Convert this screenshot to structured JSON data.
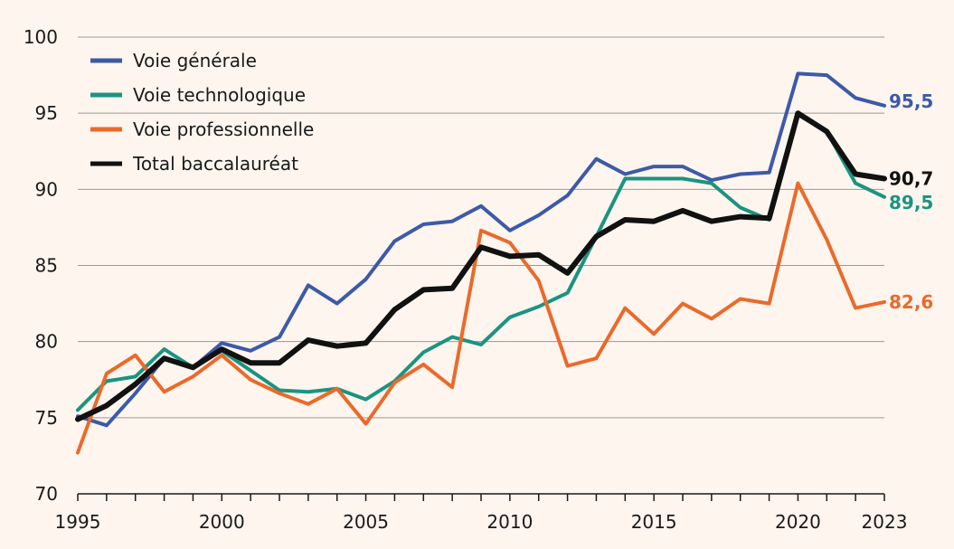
{
  "chart_data": {
    "type": "line",
    "title": "",
    "xlabel": "",
    "ylabel": "",
    "ylim": [
      70,
      100
    ],
    "xlim": [
      1995,
      2023
    ],
    "yticks": [
      "70",
      "75",
      "80",
      "85",
      "90",
      "95",
      "100"
    ],
    "xticks": [
      "1995",
      "2000",
      "2005",
      "2010",
      "2015",
      "2020",
      "2023"
    ],
    "x": [
      1995,
      1996,
      1997,
      1998,
      1999,
      2000,
      2001,
      2002,
      2003,
      2004,
      2005,
      2006,
      2007,
      2008,
      2009,
      2010,
      2011,
      2012,
      2013,
      2014,
      2015,
      2016,
      2017,
      2018,
      2019,
      2020,
      2021,
      2022,
      2023
    ],
    "legend_position": "top-left",
    "series": [
      {
        "name": "Voie générale",
        "color": "#3d5aa8",
        "end_label": "95,5",
        "values": [
          75.1,
          74.5,
          76.6,
          78.9,
          78.3,
          79.9,
          79.4,
          80.3,
          83.7,
          82.5,
          84.1,
          86.6,
          87.7,
          87.9,
          88.9,
          87.3,
          88.3,
          89.6,
          92.0,
          91.0,
          91.5,
          91.5,
          90.6,
          91.0,
          91.1,
          97.6,
          97.5,
          96.0,
          95.5
        ]
      },
      {
        "name": "Voie technologique",
        "color": "#1a9480",
        "end_label": "89,5",
        "values": [
          75.5,
          77.4,
          77.7,
          79.5,
          78.3,
          79.4,
          78.1,
          76.8,
          76.7,
          76.9,
          76.2,
          77.4,
          79.3,
          80.3,
          79.8,
          81.6,
          82.3,
          83.2,
          86.9,
          90.7,
          90.7,
          90.7,
          90.4,
          88.8,
          88.0,
          94.9,
          93.8,
          90.4,
          89.5
        ]
      },
      {
        "name": "Voie professionnelle",
        "color": "#ea6a2b",
        "end_label": "82,6",
        "values": [
          72.7,
          77.9,
          79.1,
          76.7,
          77.7,
          79.1,
          77.5,
          76.6,
          75.9,
          76.9,
          74.6,
          77.3,
          78.5,
          77.0,
          87.3,
          86.5,
          84.0,
          78.4,
          78.9,
          82.2,
          80.5,
          82.5,
          81.5,
          82.8,
          82.5,
          90.4,
          86.7,
          82.2,
          82.6
        ]
      },
      {
        "name": "Total baccalauréat",
        "color": "#111111",
        "end_label": "90,7",
        "values": [
          74.9,
          75.8,
          77.2,
          78.9,
          78.3,
          79.5,
          78.6,
          78.6,
          80.1,
          79.7,
          79.9,
          82.1,
          83.4,
          83.5,
          86.2,
          85.6,
          85.7,
          84.5,
          86.9,
          88.0,
          87.9,
          88.6,
          87.9,
          88.2,
          88.1,
          95.0,
          93.8,
          91.0,
          90.7
        ]
      }
    ]
  }
}
